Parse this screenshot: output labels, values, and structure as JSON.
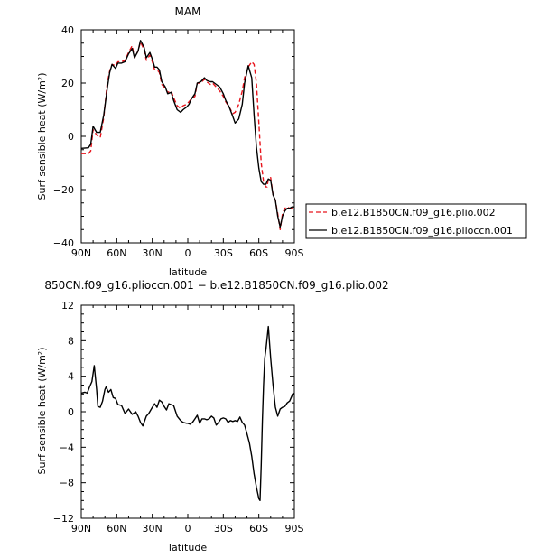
{
  "chart_data": [
    {
      "type": "line",
      "title": "MAM",
      "xlabel": "latitude",
      "ylabel": "Surf sensible heat (W/m²)",
      "xlim": [
        90,
        -90
      ],
      "ylim": [
        -40,
        40
      ],
      "xticks": [
        "90N",
        "60N",
        "30N",
        "0",
        "30S",
        "60S",
        "90S"
      ],
      "yticks": [
        "40",
        "20",
        "0",
        "−20",
        "−40"
      ],
      "legend_position": "right",
      "series": [
        {
          "name": "b.e12.B1850CN.f09_g16.plio.002",
          "color": "#e8141c",
          "dash": "dashed",
          "x": [
            90,
            84,
            82,
            80,
            77,
            74,
            71,
            68,
            66,
            64,
            61,
            59,
            56,
            53,
            50,
            47,
            45,
            42,
            40,
            37,
            35,
            32,
            30,
            28,
            26,
            24,
            22,
            19,
            17,
            14,
            12,
            9,
            6,
            4,
            1,
            0,
            -1,
            -3,
            -6,
            -8,
            -11,
            -14,
            -16,
            -19,
            -21,
            -24,
            -27,
            -30,
            -32,
            -35,
            -38,
            -40,
            -43,
            -46,
            -48,
            -51,
            -54,
            -56,
            -58,
            -60,
            -62,
            -64,
            -66,
            -67,
            -68,
            -70,
            -72,
            -74,
            -76,
            -78,
            -80,
            -82,
            -84,
            -86,
            -88,
            -90
          ],
          "y": [
            -6.5,
            -6.5,
            -5.5,
            2.5,
            0.5,
            -0.5,
            7,
            20,
            24.5,
            27,
            26.5,
            28,
            28,
            28.5,
            31.5,
            34,
            29.5,
            32,
            35.5,
            32.5,
            28.5,
            30.5,
            28,
            25,
            25,
            24,
            19.5,
            18,
            16.5,
            17,
            14.5,
            11.5,
            10.5,
            11.5,
            12,
            12.5,
            13,
            14,
            15,
            20,
            20,
            21.5,
            20.5,
            19.5,
            20,
            18.5,
            17,
            15,
            13,
            11,
            8.5,
            9,
            12,
            17,
            22,
            26,
            28,
            27,
            20,
            5,
            -10,
            -17,
            -19,
            -19,
            -16,
            -15.5,
            -22,
            -24,
            -29,
            -35,
            -29,
            -27,
            -26.5,
            -27,
            -27,
            -27
          ]
        },
        {
          "name": "b.e12.B1850CN.f09_g16.plioccn.001",
          "color": "#000000",
          "dash": "solid",
          "x": [
            90,
            84,
            82,
            80,
            77,
            74,
            71,
            68,
            66,
            64,
            61,
            59,
            56,
            53,
            50,
            47,
            45,
            42,
            40,
            37,
            35,
            32,
            30,
            28,
            26,
            24,
            22,
            19,
            17,
            14,
            12,
            9,
            6,
            4,
            1,
            0,
            -1,
            -3,
            -6,
            -8,
            -11,
            -14,
            -16,
            -19,
            -21,
            -24,
            -27,
            -30,
            -32,
            -35,
            -38,
            -40,
            -43,
            -46,
            -48,
            -51,
            -54,
            -56,
            -58,
            -60,
            -62,
            -64,
            -66,
            -67,
            -68,
            -70,
            -72,
            -74,
            -76,
            -78,
            -80,
            -82,
            -84,
            -86,
            -88,
            -90
          ],
          "y": [
            -4.5,
            -4.3,
            -3,
            3.8,
            1.5,
            1.5,
            8,
            18,
            24,
            27,
            25.5,
            27.5,
            27.5,
            28,
            31,
            33,
            29.5,
            32,
            36,
            33.5,
            29.5,
            31.5,
            29,
            26,
            26,
            25,
            20.5,
            18.5,
            16,
            16.5,
            13.5,
            10,
            9,
            10,
            11,
            11.5,
            12,
            14,
            16,
            20,
            20.5,
            22,
            21,
            20.5,
            20.5,
            19.5,
            18.5,
            16,
            13.5,
            11,
            7.5,
            5,
            6.5,
            12,
            20,
            26.5,
            22,
            8,
            -4,
            -12,
            -17,
            -18,
            -18,
            -17,
            -16,
            -16.5,
            -22,
            -24,
            -30,
            -34,
            -30,
            -28,
            -27,
            -27,
            -26.5,
            -26.5
          ]
        }
      ]
    },
    {
      "type": "line",
      "title": "850CN.f09_g16.plioccn.001 − b.e12.B1850CN.f09_g16.plio.002",
      "xlabel": "latitude",
      "ylabel": "Surf sensible heat (W/m²)",
      "xlim": [
        90,
        -90
      ],
      "ylim": [
        -12,
        12
      ],
      "xticks": [
        "90N",
        "60N",
        "30N",
        "0",
        "30S",
        "60S",
        "90S"
      ],
      "yticks": [
        "12",
        "8",
        "4",
        "0",
        "−4",
        "−8",
        "−12"
      ],
      "series": [
        {
          "color": "#000000",
          "dash": "solid",
          "x": [
            90,
            87,
            85,
            83,
            81,
            79,
            77,
            76,
            74,
            72,
            70,
            69,
            67,
            65,
            63,
            61,
            59,
            56,
            53,
            50,
            47,
            44,
            42,
            40,
            38,
            35,
            33,
            30,
            28,
            26,
            24,
            22,
            20,
            18,
            16,
            14,
            12,
            9,
            6,
            4,
            1,
            0,
            -2,
            -4,
            -6,
            -8,
            -10,
            -12,
            -14,
            -16,
            -18,
            -20,
            -22,
            -24,
            -26,
            -28,
            -30,
            -32,
            -34,
            -36,
            -38,
            -40,
            -42,
            -44,
            -46,
            -48,
            -50,
            -52,
            -54,
            -56,
            -58,
            -60,
            -61,
            -62,
            -63,
            -64,
            -65,
            -66,
            -68,
            -70,
            -72,
            -74,
            -76,
            -78,
            -80,
            -82,
            -84,
            -86,
            -88,
            -90
          ],
          "y": [
            2.1,
            2.2,
            2.1,
            2.8,
            3.4,
            5.2,
            2.5,
            0.6,
            0.5,
            1.2,
            2.5,
            2.8,
            2.2,
            2.5,
            1.6,
            1.5,
            0.8,
            0.7,
            -0.2,
            0.3,
            -0.3,
            0,
            -0.5,
            -1.2,
            -1.6,
            -0.5,
            -0.2,
            0.5,
            0.9,
            0.5,
            1.3,
            1.1,
            0.6,
            0.2,
            0.9,
            0.8,
            0.7,
            -0.5,
            -1,
            -1.2,
            -1.3,
            -1.3,
            -1.4,
            -1.2,
            -0.8,
            -0.4,
            -1.3,
            -0.8,
            -0.8,
            -0.9,
            -0.8,
            -0.5,
            -0.7,
            -1.5,
            -1.2,
            -0.8,
            -0.7,
            -0.8,
            -1.2,
            -1.0,
            -1.1,
            -1.0,
            -1.1,
            -0.6,
            -1.2,
            -1.5,
            -2.5,
            -3.5,
            -5,
            -7,
            -8.5,
            -9.8,
            -10,
            -6,
            -1,
            3,
            6,
            7,
            9.6,
            6,
            3,
            0.5,
            -0.5,
            0.3,
            0.5,
            0.6,
            1.0,
            1.2,
            1.8,
            2.1
          ]
        }
      ]
    }
  ]
}
